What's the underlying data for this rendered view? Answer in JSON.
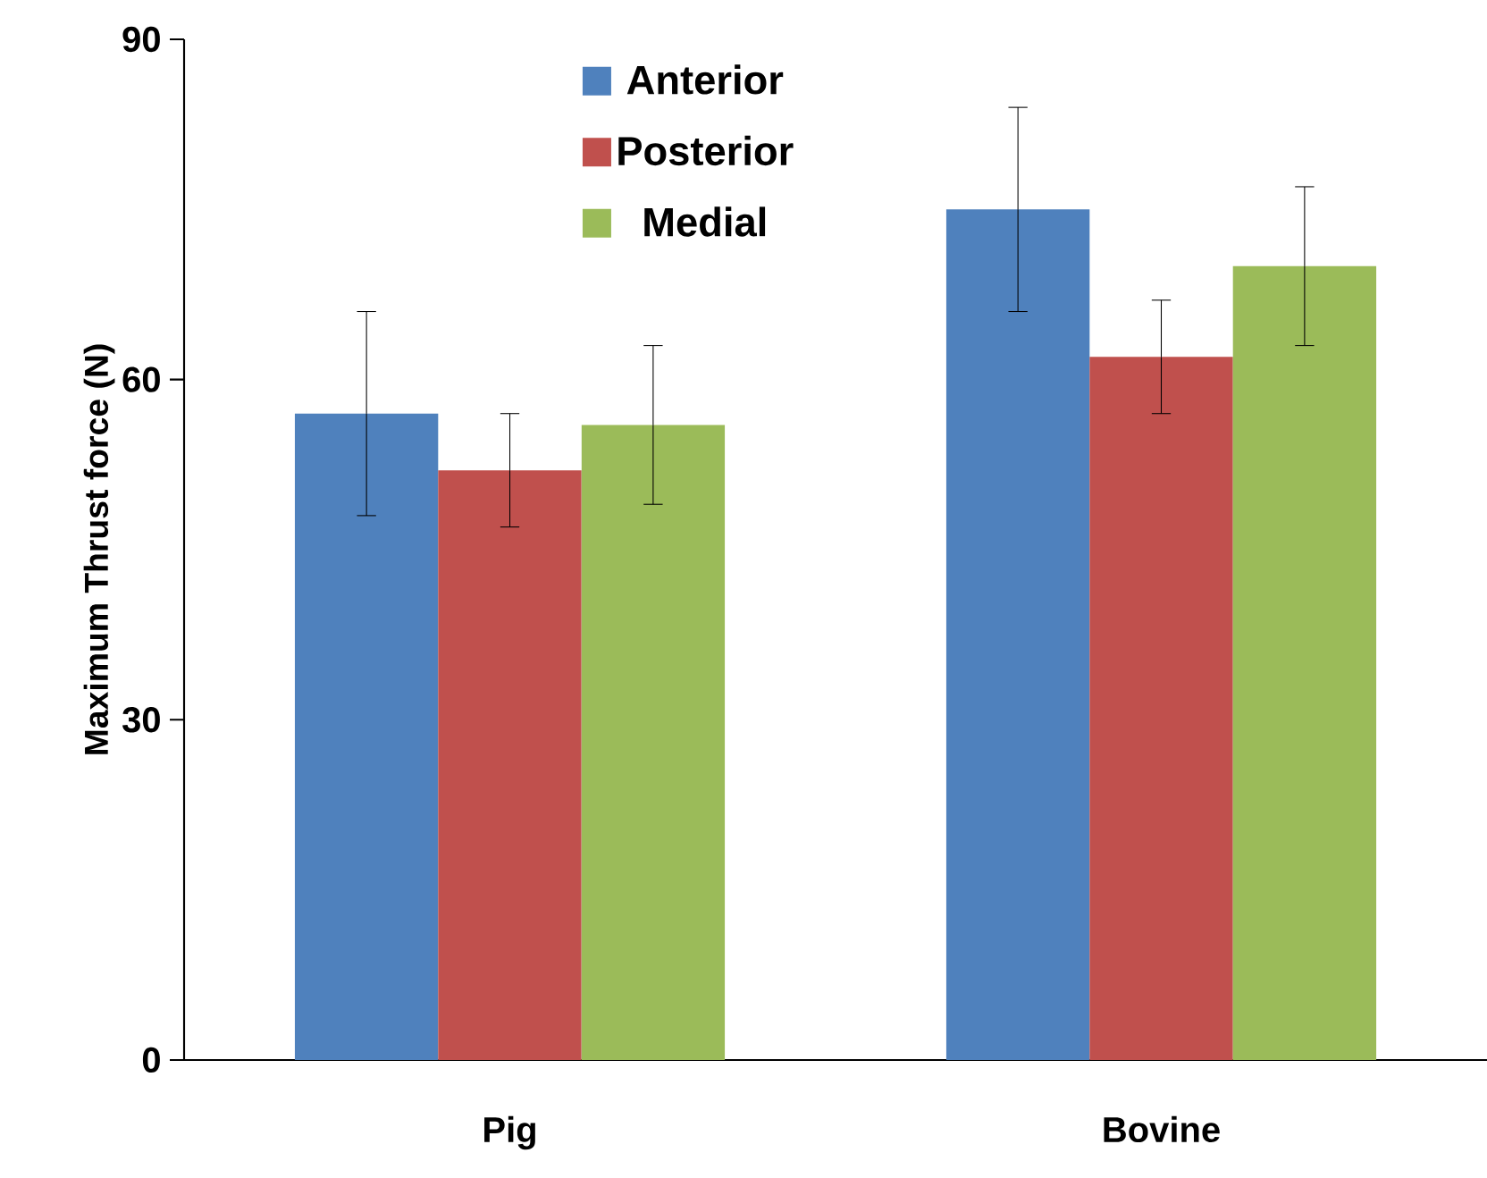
{
  "chart_data": {
    "type": "bar",
    "ylabel": "Maximum Thrust force (N)",
    "categories": [
      "Pig",
      "Bovine"
    ],
    "series": [
      {
        "name": "Anterior",
        "color": "#4f81bd",
        "values": [
          57,
          75
        ],
        "errors": [
          9,
          9
        ]
      },
      {
        "name": "Posterior",
        "color": "#c0504d",
        "values": [
          52,
          62
        ],
        "errors": [
          5,
          5
        ]
      },
      {
        "name": "Medial",
        "color": "#9bbb59",
        "values": [
          56,
          70
        ],
        "errors": [
          7,
          7
        ]
      }
    ],
    "ylim": [
      0,
      90
    ],
    "yticks": [
      0,
      30,
      60,
      90
    ],
    "legend": "top",
    "grid": false
  }
}
